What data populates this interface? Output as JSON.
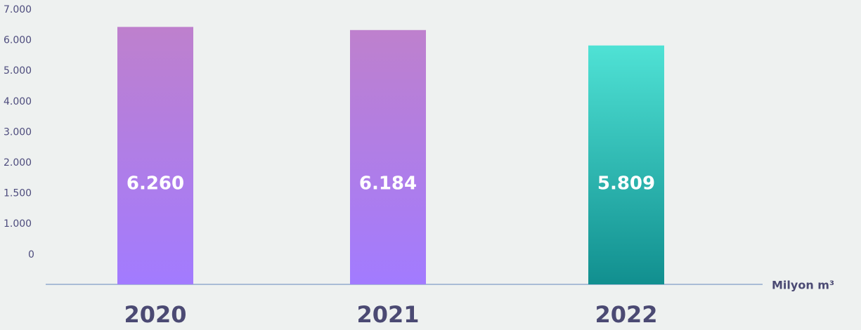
{
  "chart_data": {
    "type": "bar",
    "categories": [
      "2020",
      "2021",
      "2022"
    ],
    "values": [
      6260,
      6184,
      5809
    ],
    "value_labels": [
      "6.260",
      "6.184",
      "5.809"
    ],
    "colors": [
      [
        "#be80cd",
        "#a27bff"
      ],
      [
        "#be80cd",
        "#a27bff"
      ],
      [
        "#4fe2d5",
        "#118f8f"
      ]
    ],
    "ylim": [
      0,
      7000
    ],
    "y_axis_labels": [
      "7.000",
      "6.000",
      "5.000",
      "4.000",
      "3.000",
      "2.000",
      "1.500",
      "1.000",
      "0"
    ],
    "unit_label": "Milyon m³"
  }
}
